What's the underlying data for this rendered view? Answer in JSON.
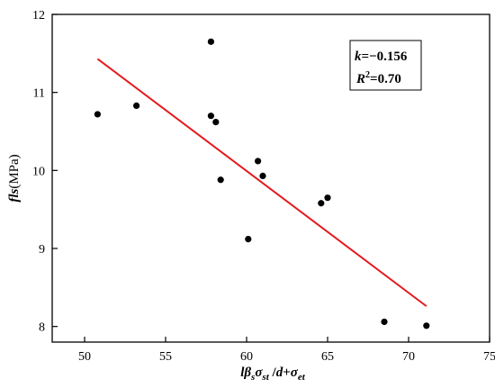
{
  "chart_data": {
    "type": "scatter",
    "xlim": [
      48,
      75
    ],
    "ylim": [
      7.8,
      12
    ],
    "x_ticks": [
      50,
      55,
      60,
      65,
      70,
      75
    ],
    "x_tick_labels": [
      "50",
      "55",
      "60",
      "65",
      "70",
      "75"
    ],
    "y_ticks": [
      8,
      9,
      10,
      11,
      12
    ],
    "y_tick_labels": [
      "8",
      "9",
      "10",
      "11",
      "12"
    ],
    "xlabel": "lβsσst /d+σet",
    "ylabel": "fls(MPa)",
    "grid": false,
    "series": [
      {
        "points": [
          {
            "x": 50.8,
            "y": 10.72
          },
          {
            "x": 53.2,
            "y": 10.83
          },
          {
            "x": 57.8,
            "y": 11.65
          },
          {
            "x": 57.8,
            "y": 10.7
          },
          {
            "x": 58.1,
            "y": 10.62
          },
          {
            "x": 58.4,
            "y": 9.88
          },
          {
            "x": 60.1,
            "y": 9.12
          },
          {
            "x": 60.7,
            "y": 10.12
          },
          {
            "x": 61.0,
            "y": 9.93
          },
          {
            "x": 64.6,
            "y": 9.58
          },
          {
            "x": 65.0,
            "y": 9.65
          },
          {
            "x": 68.5,
            "y": 8.06
          },
          {
            "x": 71.1,
            "y": 8.01
          }
        ]
      }
    ],
    "fit_line": {
      "color": "#e31a1c",
      "start": {
        "x": 50.8,
        "y": 11.43
      },
      "end": {
        "x": 71.1,
        "y": 8.26
      }
    },
    "annotation": {
      "k_label": "k",
      "k_value": "=−0.156",
      "r2_label": "R",
      "r2_sup": "2",
      "r2_value": "=0.70",
      "position": "top-right"
    },
    "colors": {
      "points": "#000000",
      "fit": "#e31a1c",
      "axes": "#000000"
    }
  }
}
